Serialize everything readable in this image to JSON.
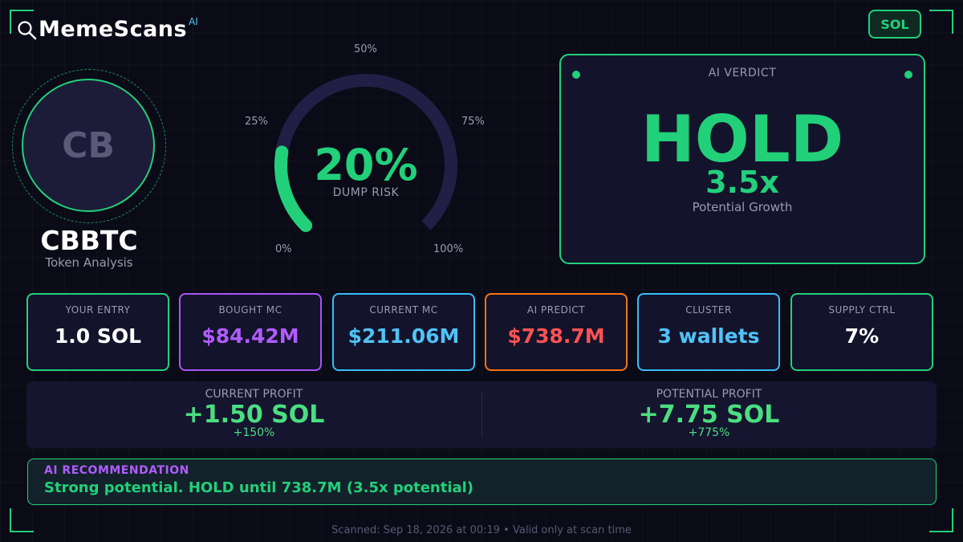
{
  "brand": {
    "name": "MemeScans",
    "superscript": "AI",
    "icon": "magnifier-icon"
  },
  "chain_badge": "SOL",
  "token": {
    "initials": "CB",
    "symbol": "CBBTC",
    "subtitle": "Token Analysis"
  },
  "dump_risk": {
    "value_text": "20%",
    "value": 0.2,
    "label": "DUMP RISK",
    "ticks": {
      "t0": "0%",
      "t25": "25%",
      "t50": "50%",
      "t75": "75%",
      "t100": "100%"
    },
    "colors": {
      "fill": "#22d07a",
      "track": "#211f45"
    }
  },
  "verdict": {
    "title": "AI VERDICT",
    "decision": "HOLD",
    "multiplier": "3.5x",
    "caption": "Potential Growth"
  },
  "stats": [
    {
      "label": "YOUR ENTRY",
      "value": "1.0 SOL",
      "border": "#22d07a",
      "color": "#ffffff"
    },
    {
      "label": "BOUGHT MC",
      "value": "$84.42M",
      "border": "#a855f7",
      "color": "#b15cff"
    },
    {
      "label": "CURRENT MC",
      "value": "$211.06M",
      "border": "#38bdf8",
      "color": "#4fc3f7"
    },
    {
      "label": "AI PREDICT",
      "value": "$738.7M",
      "border": "#f97316",
      "color": "#ff5252"
    },
    {
      "label": "CLUSTER",
      "value": "3 wallets",
      "border": "#38bdf8",
      "color": "#4fc3f7"
    },
    {
      "label": "SUPPLY CTRL",
      "value": "7%",
      "border": "#22d07a",
      "color": "#ffffff"
    }
  ],
  "profit": {
    "current": {
      "label": "CURRENT PROFIT",
      "value": "+1.50 SOL",
      "percent": "+150%"
    },
    "potential": {
      "label": "POTENTIAL PROFIT",
      "value": "+7.75 SOL",
      "percent": "+775%"
    }
  },
  "recommendation": {
    "title": "AI RECOMMENDATION",
    "text": "Strong potential. HOLD until 738.7M (3.5x potential)"
  },
  "footer": "Scanned: Sep 18, 2026 at 00:19  •  Valid only at scan time",
  "colors": {
    "accent": "#22d07a",
    "background": "#0b0b18"
  }
}
